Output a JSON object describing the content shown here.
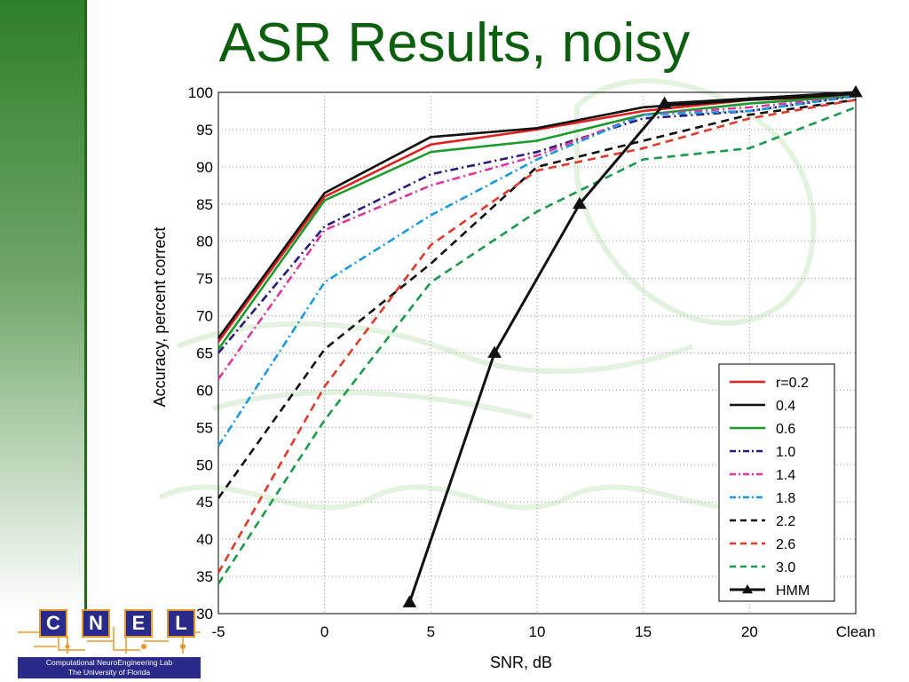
{
  "slide": {
    "title": "ASR Results, noisy"
  },
  "logo": {
    "letters": [
      "C",
      "N",
      "E",
      "L"
    ],
    "lab_name": "Computational NeuroEngineering Lab",
    "university": "The University of Florida"
  },
  "colors": {
    "title": "#0c5f0c",
    "sidebar": "#2f7f2a"
  },
  "chart_data": {
    "type": "line",
    "xlabel": "SNR, dB",
    "ylabel": "Accuracy, percent correct",
    "x_categories": [
      "-5",
      "0",
      "5",
      "10",
      "15",
      "20",
      "Clean"
    ],
    "ylim": [
      30,
      100
    ],
    "yticks": [
      "30",
      "35",
      "40",
      "45",
      "50",
      "55",
      "60",
      "65",
      "70",
      "75",
      "80",
      "85",
      "90",
      "95",
      "100"
    ],
    "grid": true,
    "legend_position": "bottom-right",
    "series": [
      {
        "name": "r=0.2",
        "color": "#e02020",
        "dash": "solid",
        "marker": "none",
        "points": [
          [
            -5,
            66.5
          ],
          [
            0,
            86
          ],
          [
            5,
            93
          ],
          [
            10,
            95
          ],
          [
            15,
            97.5
          ],
          [
            20,
            99
          ],
          [
            25,
            99.5
          ]
        ]
      },
      {
        "name": "0.4",
        "color": "#111111",
        "dash": "solid",
        "marker": "none",
        "points": [
          [
            -5,
            67
          ],
          [
            0,
            86.5
          ],
          [
            5,
            94
          ],
          [
            10,
            95.2
          ],
          [
            15,
            98
          ],
          [
            20,
            99
          ],
          [
            25,
            99.7
          ]
        ]
      },
      {
        "name": "0.6",
        "color": "#1a9a2a",
        "dash": "solid",
        "marker": "none",
        "points": [
          [
            -5,
            65.5
          ],
          [
            0,
            85.5
          ],
          [
            5,
            92
          ],
          [
            10,
            93.5
          ],
          [
            15,
            97
          ],
          [
            20,
            98.5
          ],
          [
            25,
            99.5
          ]
        ]
      },
      {
        "name": "1.0",
        "color": "#2a1a7a",
        "dash": "dashdot",
        "marker": "none",
        "points": [
          [
            -5,
            65
          ],
          [
            0,
            82
          ],
          [
            5,
            89
          ],
          [
            10,
            92
          ],
          [
            15,
            96.5
          ],
          [
            20,
            97.5
          ],
          [
            25,
            99.5
          ]
        ]
      },
      {
        "name": "1.4",
        "color": "#e0359a",
        "dash": "dashdot",
        "marker": "none",
        "points": [
          [
            -5,
            61.5
          ],
          [
            0,
            81.5
          ],
          [
            5,
            87.5
          ],
          [
            10,
            91.5
          ],
          [
            15,
            97
          ],
          [
            20,
            98
          ],
          [
            25,
            99.5
          ]
        ]
      },
      {
        "name": "1.8",
        "color": "#1a9ae0",
        "dash": "dashdot",
        "marker": "none",
        "points": [
          [
            -5,
            52.5
          ],
          [
            0,
            74.5
          ],
          [
            5,
            83.5
          ],
          [
            10,
            91
          ],
          [
            15,
            97
          ],
          [
            20,
            97.5
          ],
          [
            25,
            99.5
          ]
        ]
      },
      {
        "name": "2.2",
        "color": "#111111",
        "dash": "dash",
        "marker": "none",
        "points": [
          [
            -5,
            45.5
          ],
          [
            0,
            65.5
          ],
          [
            5,
            77
          ],
          [
            10,
            90
          ],
          [
            15,
            93.5
          ],
          [
            20,
            97
          ],
          [
            25,
            99
          ]
        ]
      },
      {
        "name": "2.6",
        "color": "#e03a2a",
        "dash": "dash",
        "marker": "none",
        "points": [
          [
            -5,
            35.5
          ],
          [
            0,
            60.5
          ],
          [
            5,
            79.5
          ],
          [
            10,
            89.5
          ],
          [
            15,
            92.5
          ],
          [
            20,
            96.5
          ],
          [
            25,
            99
          ]
        ]
      },
      {
        "name": "3.0",
        "color": "#1a9a4a",
        "dash": "dash",
        "marker": "none",
        "points": [
          [
            -5,
            34
          ],
          [
            0,
            56
          ],
          [
            5,
            74.5
          ],
          [
            10,
            84
          ],
          [
            15,
            91
          ],
          [
            20,
            92.5
          ],
          [
            25,
            98
          ]
        ]
      },
      {
        "name": "HMM",
        "color": "#111111",
        "dash": "solid",
        "marker": "triangle",
        "points": [
          [
            4,
            31.5
          ],
          [
            8,
            65
          ],
          [
            12,
            85
          ],
          [
            16,
            98.5
          ],
          [
            25,
            100
          ]
        ]
      }
    ]
  }
}
